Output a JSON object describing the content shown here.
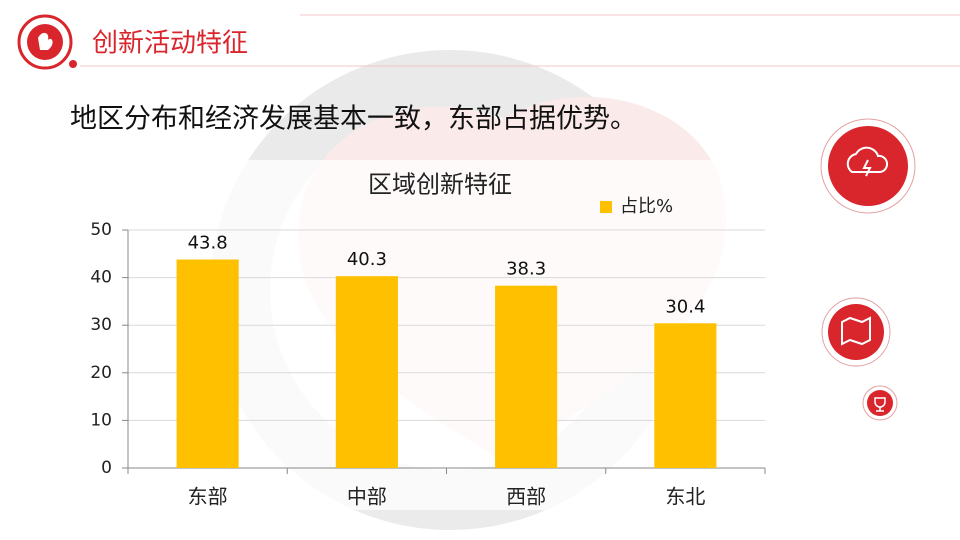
{
  "page": {
    "title": "创新活动特征",
    "subtitle": "地区分布和经济发展基本一致，东部占据优势。"
  },
  "chart_data": {
    "type": "bar",
    "title": "区域创新特征",
    "categories": [
      "东部",
      "中部",
      "西部",
      "东北"
    ],
    "series": [
      {
        "name": "占比%",
        "color": "#ffc000",
        "values": [
          43.8,
          40.3,
          38.3,
          30.4
        ]
      }
    ],
    "ylim": [
      0,
      50
    ],
    "yticks": [
      0,
      10,
      20,
      30,
      40,
      50
    ],
    "grid": true,
    "legend": "top-right"
  }
}
